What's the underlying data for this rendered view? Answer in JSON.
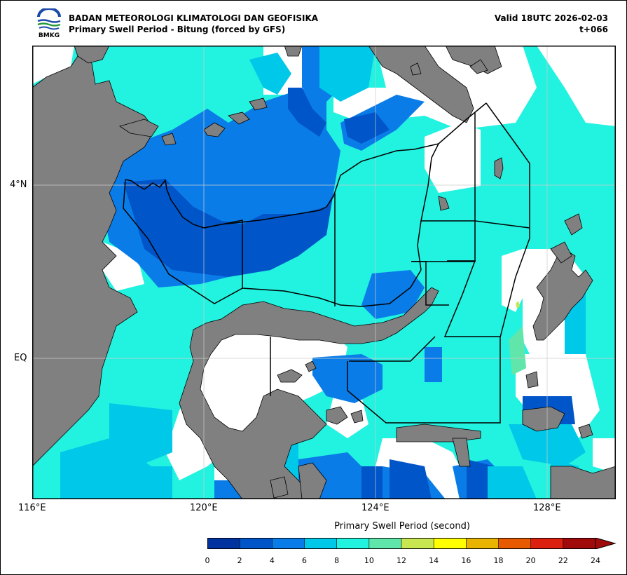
{
  "header": {
    "agency": "BADAN METEOROLOGI KLIMATOLOGI DAN GEOFISIKA",
    "subtitle": "Primary Swell Period - Bitung (forced by GFS)",
    "valid": "Valid 18UTC 2026-02-03",
    "forecast_step": "t+066",
    "logo_text": "BMKG"
  },
  "axes": {
    "x_ticks": [
      "116°E",
      "120°E",
      "124°E",
      "128°E"
    ],
    "y_ticks": [
      "4°N",
      "EQ"
    ]
  },
  "colorbar": {
    "title": "Primary Swell Period (second)",
    "labels": [
      "0",
      "2",
      "4",
      "6",
      "8",
      "10",
      "12",
      "14",
      "16",
      "18",
      "20",
      "22",
      "24"
    ],
    "colors": [
      "#0033a0",
      "#0055c8",
      "#0a7ce8",
      "#00c8e8",
      "#22f2e0",
      "#60e6aa",
      "#c8e650",
      "#ffff00",
      "#e8b400",
      "#e85a00",
      "#dc2010",
      "#a00a0a"
    ]
  },
  "map": {
    "extent": {
      "lon_min": 116,
      "lon_max": 129.6,
      "lat_min": -3.25,
      "lat_max": 5.3
    },
    "colors": {
      "land": "#808080",
      "no_data": "#ffffff",
      "period_0_2": "#0033a0",
      "period_2_4": "#0055c8",
      "period_4_6": "#0a7ce8",
      "period_6_8": "#00c8e8",
      "period_8_10": "#22f2e0",
      "period_10_12": "#60e6aa",
      "period_12_14": "#c8e650"
    }
  }
}
